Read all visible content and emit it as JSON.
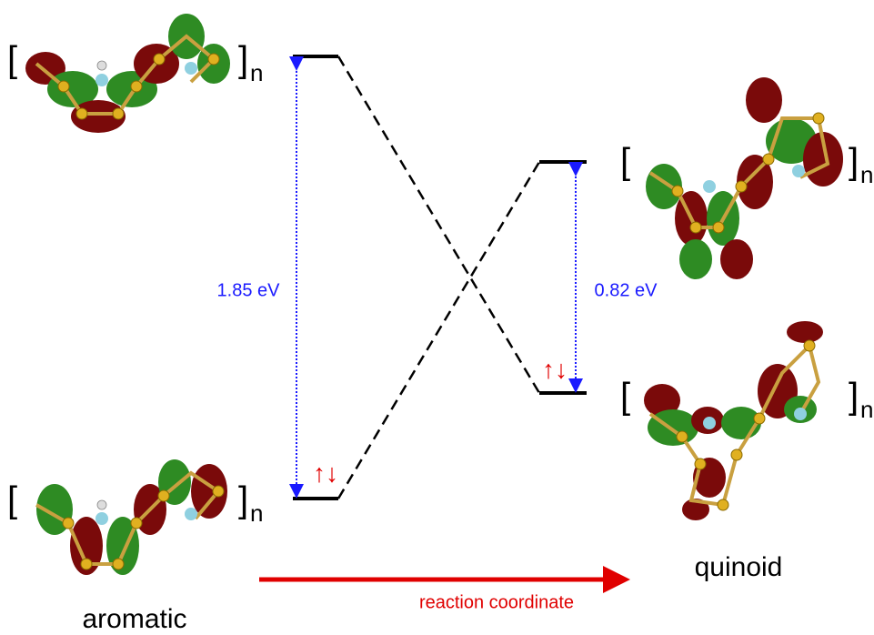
{
  "brackets": {
    "open": "[",
    "close": "]",
    "subscript": "n"
  },
  "gaps": [
    {
      "label": "1.85 eV"
    },
    {
      "label": "0.82 eV"
    }
  ],
  "spins": "↑↓",
  "structures": [
    {
      "label": "aromatic"
    },
    {
      "label": "quinoid"
    }
  ],
  "axis": {
    "label": "reaction coordinate"
  }
}
